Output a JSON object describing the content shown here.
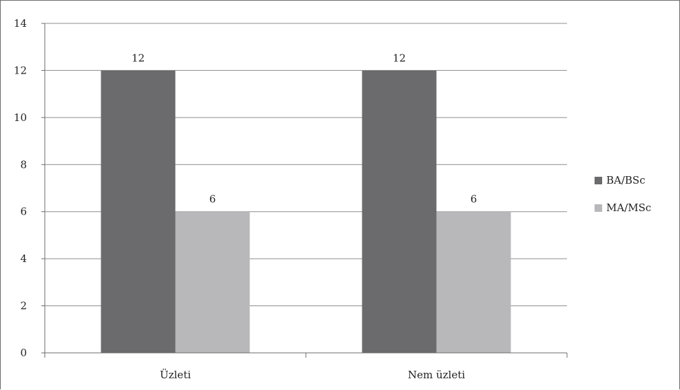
{
  "chart_data": {
    "type": "bar",
    "categories": [
      "Üzleti",
      "Nem üzleti"
    ],
    "series": [
      {
        "name": "BA/BSc",
        "values": [
          12,
          12
        ],
        "color": "#6b6b6d"
      },
      {
        "name": "MA/MSc",
        "values": [
          6,
          6
        ],
        "color": "#b8b8bb"
      }
    ],
    "ylim": [
      0,
      14
    ],
    "yticks": [
      0,
      2,
      4,
      6,
      8,
      10,
      12,
      14
    ],
    "grid": true,
    "legend_position": "right",
    "data_labels": true,
    "gridline_color": "#8c8c8c",
    "axis_color": "#6b6b6b"
  }
}
